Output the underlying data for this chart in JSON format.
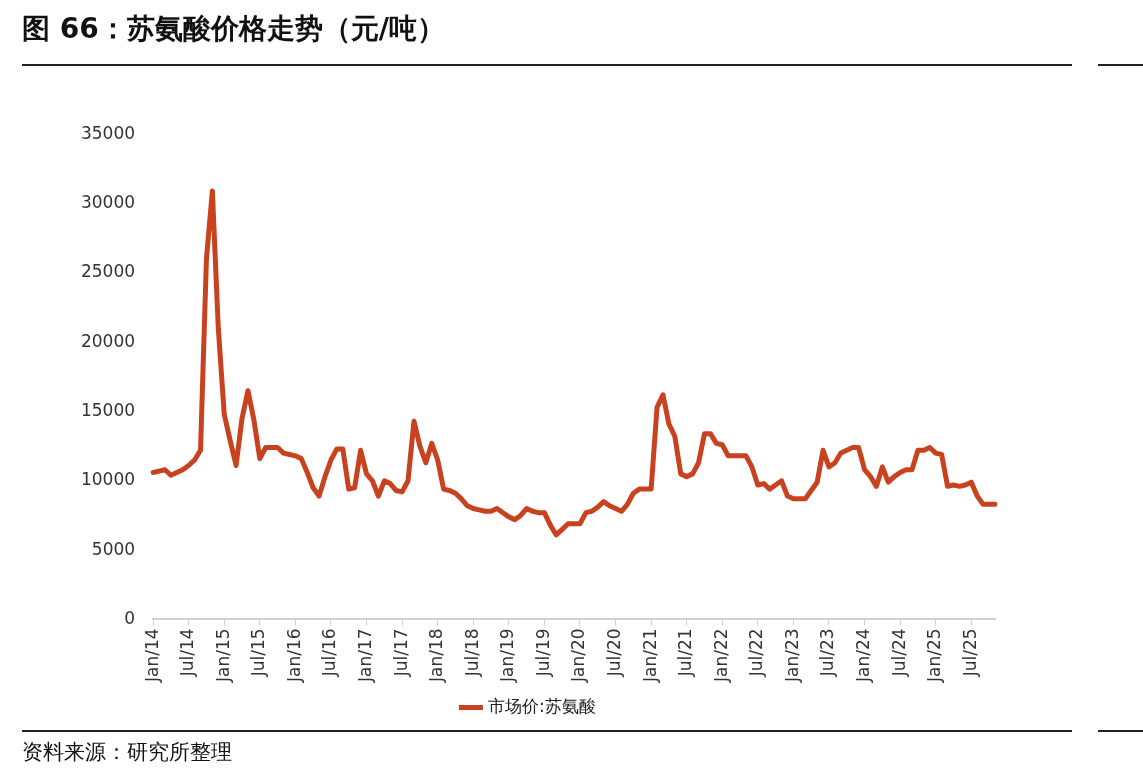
{
  "chart_data": {
    "type": "line",
    "title": "图 66：苏氨酸价格走势（元/吨）",
    "annotations": [
      "资料来源：研究所整理"
    ],
    "categories": [
      "Jan/14",
      null,
      null,
      null,
      null,
      null,
      "Jul/14",
      null,
      null,
      null,
      null,
      null,
      "Jan/15",
      null,
      null,
      null,
      null,
      null,
      "Jul/15",
      null,
      null,
      null,
      null,
      null,
      "Jan/16",
      null,
      null,
      null,
      null,
      null,
      "Jul/16",
      null,
      null,
      null,
      null,
      null,
      "Jan/17",
      null,
      null,
      null,
      null,
      null,
      "Jul/17",
      null,
      null,
      null,
      null,
      null,
      "Jan/18",
      null,
      null,
      null,
      null,
      null,
      "Jul/18",
      null,
      null,
      null,
      null,
      null,
      "Jan/19",
      null,
      null,
      null,
      null,
      null,
      "Jul/19",
      null,
      null,
      null,
      null,
      null,
      "Jan/20",
      null,
      null,
      null,
      null,
      null,
      "Jul/20",
      null,
      null,
      null,
      null,
      null,
      "Jan/21",
      null,
      null,
      null,
      null,
      null,
      "Jul/21",
      null,
      null,
      null,
      null,
      null,
      "Jan/22",
      null,
      null,
      null,
      null,
      null,
      "Jul/22",
      null,
      null,
      null,
      null,
      null,
      "Jan/23",
      null,
      null,
      null,
      null,
      null,
      "Jul/23",
      null,
      null,
      null,
      null,
      null,
      "Jan/24",
      null,
      null,
      null,
      null,
      null,
      "Jul/24",
      null,
      null,
      null,
      null,
      null,
      "Jan/25",
      null,
      null,
      null,
      null,
      null,
      "Jul/25",
      null,
      null,
      null,
      null
    ],
    "series": [
      {
        "name": "市场价:苏氨酸",
        "color": "#c9421f",
        "values": [
          10600,
          10700,
          10800,
          10400,
          10600,
          10800,
          11100,
          11500,
          12200,
          26000,
          30900,
          21000,
          14800,
          12900,
          11100,
          14500,
          16500,
          14400,
          11600,
          12400,
          12400,
          12400,
          12000,
          11900,
          11800,
          11600,
          10600,
          9500,
          8900,
          10300,
          11500,
          12300,
          12300,
          9400,
          9500,
          12200,
          10500,
          10000,
          8900,
          10000,
          9800,
          9300,
          9200,
          10000,
          14300,
          12500,
          11300,
          12700,
          11500,
          9400,
          9300,
          9100,
          8700,
          8200,
          8000,
          7900,
          7800,
          7800,
          8000,
          7700,
          7400,
          7200,
          7500,
          8000,
          7800,
          7700,
          7700,
          6800,
          6100,
          6500,
          6900,
          6900,
          6900,
          7700,
          7800,
          8100,
          8500,
          8200,
          8000,
          7800,
          8300,
          9100,
          9400,
          9400,
          9400,
          15300,
          16200,
          14100,
          13200,
          10500,
          10300,
          10500,
          11300,
          13400,
          13400,
          12700,
          12600,
          11800,
          11800,
          11800,
          11800,
          11000,
          9700,
          9800,
          9400,
          9700,
          10000,
          8900,
          8700,
          8700,
          8700,
          9300,
          9900,
          12200,
          11000,
          11300,
          12000,
          12200,
          12400,
          12400,
          10800,
          10300,
          9600,
          11000,
          9900,
          10300,
          10600,
          10800,
          10800,
          12200,
          12200,
          12400,
          12000,
          11900,
          9600,
          9700,
          9600,
          9700,
          9900,
          8900,
          8300,
          8300,
          8300
        ]
      }
    ],
    "ylim": [
      0,
      35000
    ],
    "yticks": [
      0,
      5000,
      10000,
      15000,
      20000,
      25000,
      30000,
      35000
    ],
    "grid": false,
    "legend": "bottom",
    "marker": "none",
    "line_style": "solid"
  }
}
